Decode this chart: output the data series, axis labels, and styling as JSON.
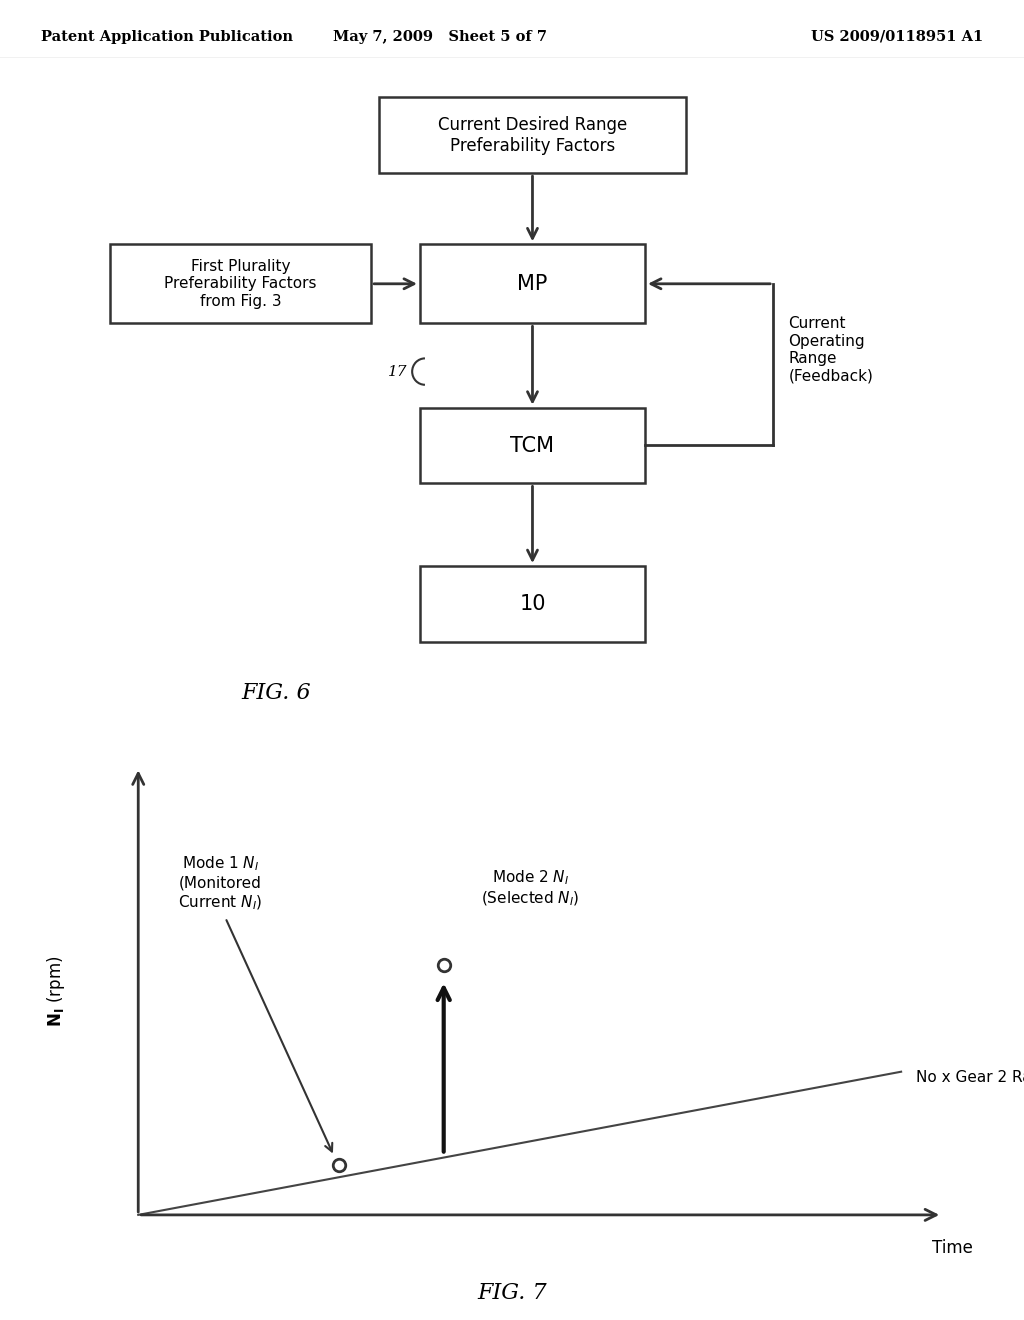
{
  "bg_color": "#ffffff",
  "header_left": "Patent Application Publication",
  "header_mid": "May 7, 2009   Sheet 5 of 7",
  "header_right": "US 2009/0118951 A1",
  "fig6_caption": "FIG. 6",
  "fig7_caption": "FIG. 7"
}
